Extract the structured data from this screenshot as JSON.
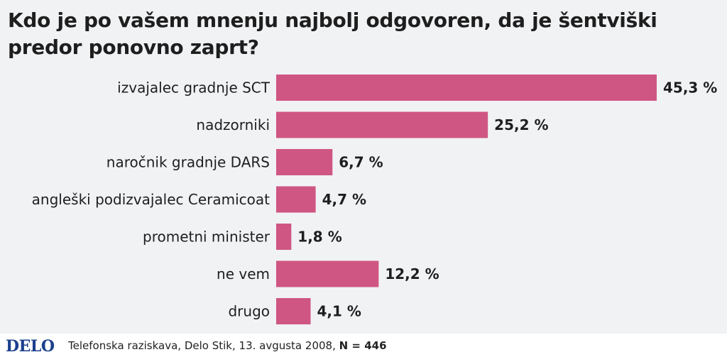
{
  "title": "Kdo je po vašem mnenju najbolj odgovoren, da je šentviški predor ponovno zaprt?",
  "colors": {
    "bar": "#cf5682",
    "background": "#f1f2f4",
    "text": "#1e1e1e",
    "logo": "#1b3f8c"
  },
  "chart_data": {
    "type": "bar",
    "orientation": "horizontal",
    "categories": [
      "izvajalec gradnje SCT",
      "nadzorniki",
      "naročnik gradnje DARS",
      "angleški podizvajalec Ceramicoat",
      "prometni minister",
      "ne vem",
      "drugo"
    ],
    "values": [
      45.3,
      25.2,
      6.7,
      4.7,
      1.8,
      12.2,
      4.1
    ],
    "value_labels": [
      "45,3 %",
      "25,2 %",
      "6,7 %",
      "4,7 %",
      "1,8 %",
      "12,2 %",
      "4,1 %"
    ],
    "xlim": [
      0,
      45.3
    ],
    "grid": false,
    "legend": "none"
  },
  "footer": {
    "logo": "DELO",
    "source": "Telefonska raziskava, Delo Stik, 13. avgusta 2008,",
    "sample": "N = 446"
  }
}
